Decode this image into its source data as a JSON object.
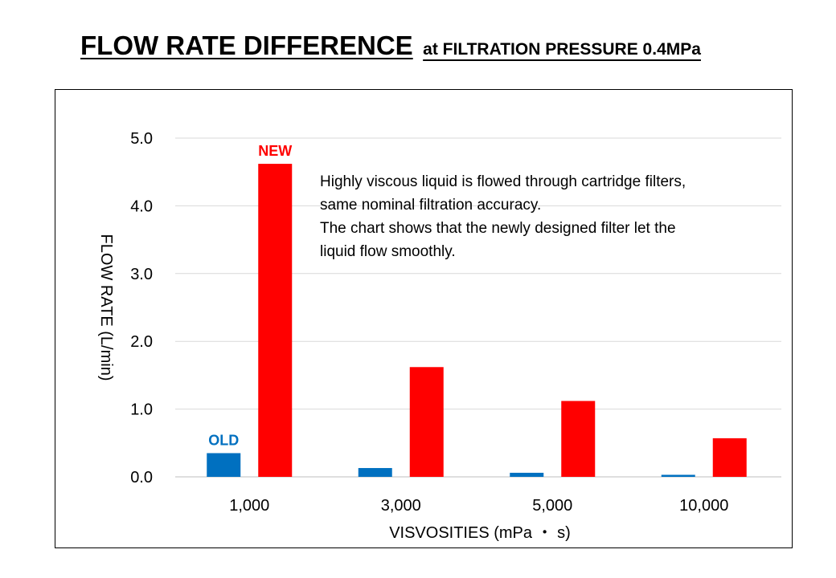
{
  "title": {
    "main": "FLOW RATE DIFFERENCE",
    "sub": "at FILTRATION PRESSURE 0.4MPa"
  },
  "chart_data": {
    "type": "bar",
    "categories": [
      "1,000",
      "3,000",
      "5,000",
      "10,000"
    ],
    "series": [
      {
        "name": "OLD",
        "color": "#0070c0",
        "values": [
          0.35,
          0.13,
          0.06,
          0.03
        ]
      },
      {
        "name": "NEW",
        "color": "#ff0000",
        "values": [
          4.62,
          1.62,
          1.12,
          0.57
        ]
      }
    ],
    "xlabel": "VISVOSITIES (mPa ・ s)",
    "ylabel": "FLOW RATE (L/min)",
    "ylim": [
      0,
      5
    ],
    "yticks": [
      "0.0",
      "1.0",
      "2.0",
      "3.0",
      "4.0",
      "5.0"
    ],
    "grid": true,
    "legend": "series labels placed above first category bars",
    "annotation": [
      "Highly viscous liquid is flowed through cartridge filters,",
      "same nominal filtration accuracy.",
      "The chart shows that the newly designed filter let the",
      "liquid flow smoothly."
    ]
  }
}
